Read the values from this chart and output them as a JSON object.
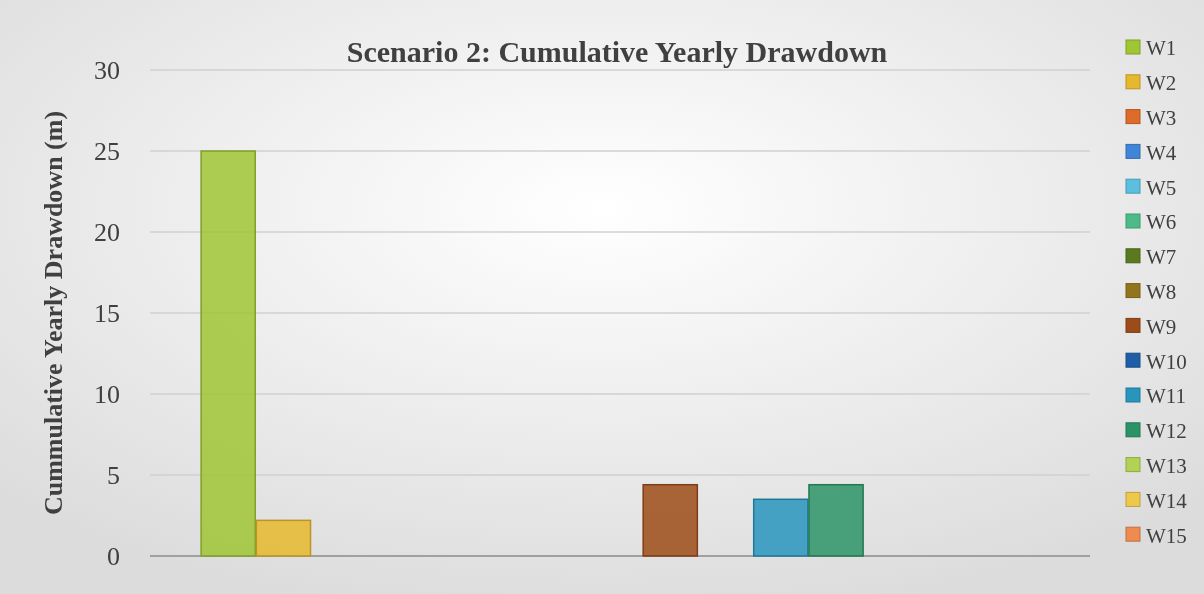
{
  "chart_data": {
    "type": "bar",
    "title": "Scenario 2: Cumulative Yearly Drawdown",
    "ylabel": "Cummulative Yearly Drawdown (m)",
    "categories": [
      null
    ],
    "series": [
      {
        "name": "W1",
        "color": "#9fc634",
        "values": [
          25
        ]
      },
      {
        "name": "W2",
        "color": "#e6b82e",
        "values": [
          2.2
        ]
      },
      {
        "name": "W3",
        "color": "#dd6b2a",
        "values": [
          0
        ]
      },
      {
        "name": "W4",
        "color": "#3f86d8",
        "values": [
          0
        ]
      },
      {
        "name": "W5",
        "color": "#5bbfe0",
        "values": [
          0
        ]
      },
      {
        "name": "W6",
        "color": "#4cbb88",
        "values": [
          0
        ]
      },
      {
        "name": "W7",
        "color": "#5b7a1e",
        "values": [
          0
        ]
      },
      {
        "name": "W8",
        "color": "#93741e",
        "values": [
          0
        ]
      },
      {
        "name": "W9",
        "color": "#9c4c18",
        "values": [
          4.4
        ]
      },
      {
        "name": "W10",
        "color": "#1f5ea6",
        "values": [
          0
        ]
      },
      {
        "name": "W11",
        "color": "#2895bd",
        "values": [
          3.5
        ]
      },
      {
        "name": "W12",
        "color": "#2b9466",
        "values": [
          4.4
        ]
      },
      {
        "name": "W13",
        "color": "#b2d255",
        "values": [
          0
        ]
      },
      {
        "name": "W14",
        "color": "#edc84a",
        "values": [
          0
        ]
      },
      {
        "name": "W15",
        "color": "#ef8a50",
        "values": [
          0
        ]
      }
    ],
    "ylim": [
      0,
      30
    ],
    "yticks": [
      0,
      5,
      10,
      15,
      20,
      25,
      30
    ],
    "grid": "y",
    "legend": "right"
  }
}
